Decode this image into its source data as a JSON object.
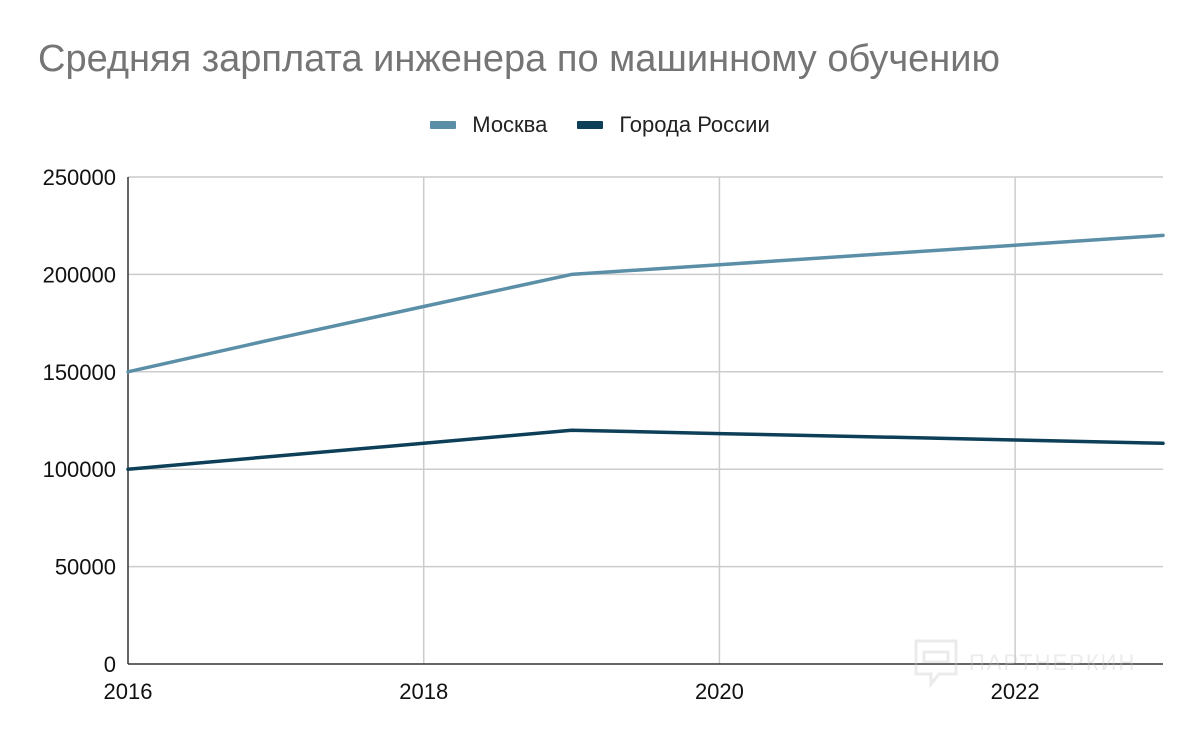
{
  "chart_data": {
    "type": "line",
    "title": "Средняя зарплата инженера по машинному обучению",
    "xlabel": "",
    "ylabel": "",
    "x": [
      2016,
      2017,
      2018,
      2019,
      2020,
      2021,
      2022,
      2023
    ],
    "xlim": [
      2016,
      2023
    ],
    "ylim": [
      0,
      250000
    ],
    "x_ticks": [
      "2016",
      "2018",
      "2020",
      "2022"
    ],
    "y_ticks": [
      "0",
      "50000",
      "100000",
      "150000",
      "200000",
      "250000"
    ],
    "grid": true,
    "legend_position": "top-center",
    "series": [
      {
        "name": "Москва",
        "color": "#5b8fa8",
        "values": [
          150000,
          167000,
          183500,
          200000,
          205000,
          210000,
          215000,
          220000
        ]
      },
      {
        "name": "Города России",
        "color": "#0d3f58",
        "values": [
          100000,
          106700,
          113300,
          120000,
          118300,
          116700,
          115000,
          113300
        ]
      }
    ]
  },
  "watermark": {
    "text": "ПАРТНЕРКИН",
    "icon": "chat-bubble-icon"
  }
}
